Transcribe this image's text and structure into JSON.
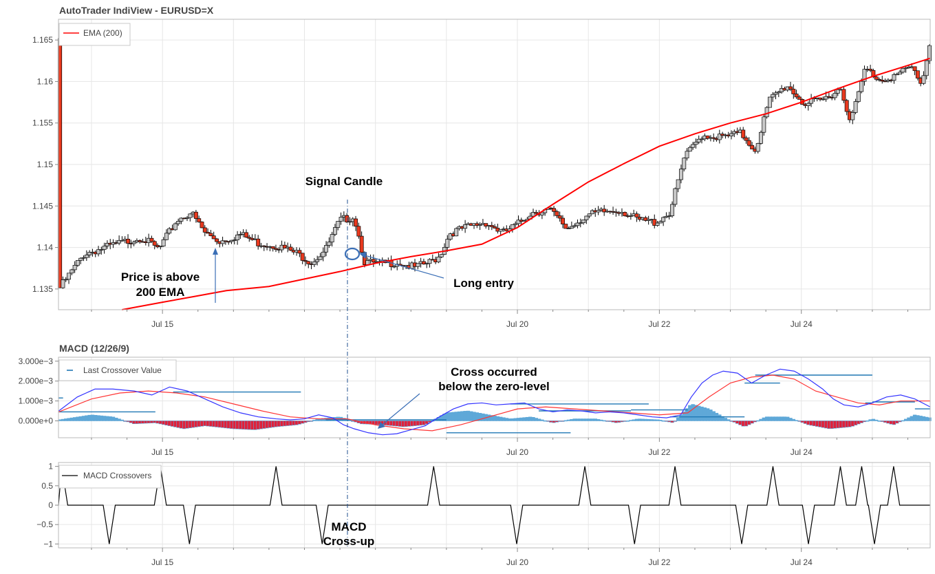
{
  "page": {
    "title": "AutoTrader IndiView - EURUSD=X"
  },
  "colors": {
    "up_candle": "#c8c8c8",
    "down_candle": "#e8391e",
    "ema": "#ff0000",
    "macd_line": "#3333ff",
    "signal_line": "#ff3333",
    "hist_pos": "#5fa8d8",
    "hist_neg": "#e0203a",
    "crossover_level": "#1f77b4",
    "crossover_line": "#000000",
    "annotation_arrow": "#3b6fb6",
    "grid": "#e6e6e6"
  },
  "x_axis": {
    "labels": [
      "Jul 15",
      "Jul 20",
      "Jul 22",
      "Jul 24"
    ],
    "label_positions_days": [
      14,
      19,
      21,
      23
    ]
  },
  "chart_data": [
    {
      "type": "candlestick",
      "title": "AutoTrader IndiView - EURUSD=X",
      "x_range_days": [
        12.535,
        24.815
      ],
      "ylim": [
        1.1325,
        1.1675
      ],
      "y_ticks": [
        1.135,
        1.14,
        1.145,
        1.15,
        1.155,
        1.16,
        1.165
      ],
      "y_tick_labels": [
        "1.135",
        "1.14",
        "1.145",
        "1.15",
        "1.155",
        "1.16",
        "1.165"
      ],
      "grid": true,
      "legend_placement": "top-left",
      "legend": [
        "EMA (200)"
      ],
      "series": [
        {
          "name": "EMA (200)",
          "kind": "line",
          "x": [
            13.43,
            14.0,
            14.45,
            14.9,
            15.5,
            16.0,
            16.5,
            17.0,
            17.5,
            18.0,
            18.5,
            19.0,
            19.5,
            20.0,
            20.5,
            21.0,
            21.5,
            22.0,
            22.5,
            23.0,
            23.5,
            24.0,
            24.45,
            24.815
          ],
          "y": [
            1.1325,
            1.1334,
            1.1341,
            1.1348,
            1.1353,
            1.1362,
            1.1371,
            1.1381,
            1.1389,
            1.1396,
            1.1404,
            1.1424,
            1.1452,
            1.1479,
            1.1501,
            1.1522,
            1.1537,
            1.155,
            1.1561,
            1.1575,
            1.1591,
            1.1606,
            1.1618,
            1.1628
          ]
        }
      ],
      "candles_anchor_close": [
        [
          12.54,
          1.1352
        ],
        [
          12.9,
          1.1395
        ],
        [
          13.3,
          1.1405
        ],
        [
          13.7,
          1.1415
        ],
        [
          13.95,
          1.14
        ],
        [
          14.2,
          1.1435
        ],
        [
          14.4,
          1.1445
        ],
        [
          14.6,
          1.142
        ],
        [
          14.8,
          1.141
        ],
        [
          15.1,
          1.1418
        ],
        [
          15.35,
          1.1408
        ],
        [
          15.6,
          1.1405
        ],
        [
          15.9,
          1.1395
        ],
        [
          16.1,
          1.1385
        ],
        [
          16.3,
          1.14
        ],
        [
          16.5,
          1.1435
        ],
        [
          16.7,
          1.144
        ],
        [
          16.85,
          1.1385
        ],
        [
          17.05,
          1.1382
        ],
        [
          17.3,
          1.1385
        ],
        [
          17.55,
          1.1378
        ],
        [
          17.78,
          1.1385
        ],
        [
          17.9,
          1.1392
        ],
        [
          18.05,
          1.142
        ],
        [
          18.3,
          1.1427
        ],
        [
          18.55,
          1.1433
        ],
        [
          18.8,
          1.142
        ],
        [
          19.0,
          1.143
        ],
        [
          19.2,
          1.1445
        ],
        [
          19.45,
          1.1448
        ],
        [
          19.7,
          1.1425
        ],
        [
          19.95,
          1.144
        ],
        [
          20.2,
          1.1445
        ],
        [
          20.45,
          1.1448
        ],
        [
          20.7,
          1.1435
        ],
        [
          20.95,
          1.1433
        ],
        [
          21.15,
          1.1445
        ],
        [
          21.35,
          1.151
        ],
        [
          21.6,
          1.1538
        ],
        [
          21.9,
          1.1535
        ],
        [
          22.15,
          1.154
        ],
        [
          22.35,
          1.152
        ],
        [
          22.55,
          1.158
        ],
        [
          22.8,
          1.1598
        ],
        [
          23.05,
          1.1575
        ],
        [
          23.3,
          1.158
        ],
        [
          23.55,
          1.1595
        ],
        [
          23.7,
          1.1555
        ],
        [
          23.9,
          1.1618
        ],
        [
          24.1,
          1.1605
        ],
        [
          24.35,
          1.161
        ],
        [
          24.55,
          1.162
        ],
        [
          24.7,
          1.16
        ],
        [
          24.815,
          1.1652
        ]
      ]
    },
    {
      "type": "line",
      "title": "MACD (12/26/9)",
      "ylim": [
        -0.00085,
        0.0032
      ],
      "y_ticks": [
        0.0,
        0.001,
        0.002,
        0.003
      ],
      "y_tick_labels": [
        "0.000e+0",
        "1.000e−3",
        "2.000e−3",
        "3.000e−3"
      ],
      "grid": true,
      "legend_placement": "top-left",
      "legend": [
        "Last Crossover Value"
      ],
      "series": [
        {
          "name": "macd",
          "kind": "line",
          "x": [
            12.54,
            12.8,
            13.05,
            13.3,
            13.6,
            13.85,
            14.1,
            14.35,
            14.6,
            14.85,
            15.1,
            15.35,
            15.6,
            15.8,
            16.0,
            16.2,
            16.4,
            16.55,
            16.7,
            16.9,
            17.1,
            17.3,
            17.5,
            17.7,
            17.9,
            18.1,
            18.3,
            18.5,
            18.7,
            18.9,
            19.1,
            19.3,
            19.5,
            19.7,
            19.9,
            20.1,
            20.3,
            20.5,
            20.7,
            20.9,
            21.1,
            21.3,
            21.45,
            21.6,
            21.75,
            21.9,
            22.1,
            22.3,
            22.5,
            22.7,
            22.9,
            23.1,
            23.3,
            23.45,
            23.6,
            23.8,
            24.0,
            24.2,
            24.4,
            24.6,
            24.815
          ],
          "y": [
            0.0005,
            0.0012,
            0.0016,
            0.0016,
            0.0015,
            0.0013,
            0.0017,
            0.0015,
            0.0011,
            0.0007,
            0.0004,
            0.0002,
            0.0001,
            5e-05,
            0.0001,
            0.0003,
            0.00015,
            -0.0002,
            -0.0004,
            -0.0006,
            -0.0007,
            -0.00065,
            -0.00045,
            -0.00025,
            0.0002,
            0.0006,
            0.00085,
            0.0009,
            0.0008,
            0.00085,
            0.0009,
            0.0006,
            0.00045,
            0.00055,
            0.0005,
            0.0004,
            0.00045,
            0.0004,
            0.0003,
            0.0002,
            0.00015,
            0.0003,
            0.0012,
            0.0019,
            0.0023,
            0.0025,
            0.0024,
            0.0019,
            0.0023,
            0.0026,
            0.0025,
            0.0021,
            0.0016,
            0.0011,
            0.0008,
            0.0007,
            0.0009,
            0.0012,
            0.0013,
            0.0011,
            0.0007
          ]
        },
        {
          "name": "signal",
          "kind": "line",
          "x": [
            12.54,
            13.0,
            13.4,
            13.8,
            14.2,
            14.6,
            15.0,
            15.4,
            15.8,
            16.2,
            16.6,
            17.0,
            17.4,
            17.8,
            18.2,
            18.6,
            19.0,
            19.4,
            19.8,
            20.2,
            20.6,
            21.0,
            21.4,
            21.7,
            22.0,
            22.3,
            22.6,
            22.9,
            23.2,
            23.5,
            23.8,
            24.1,
            24.4,
            24.815
          ],
          "y": [
            0.00045,
            0.0011,
            0.0014,
            0.0015,
            0.0014,
            0.0012,
            0.00085,
            0.0005,
            0.0002,
            0.0001,
            0.0001,
            -0.0002,
            -0.0004,
            -0.0005,
            -0.0002,
            0.0002,
            0.0006,
            0.0007,
            0.0006,
            0.0005,
            0.0004,
            0.0003,
            0.0004,
            0.0012,
            0.0019,
            0.0022,
            0.0023,
            0.0021,
            0.0015,
            0.0012,
            0.0009,
            0.0008,
            0.001,
            0.001
          ]
        },
        {
          "name": "histogram",
          "kind": "bar",
          "anchor_x": [
            12.54,
            13.0,
            13.3,
            13.6,
            13.9,
            14.3,
            14.6,
            15.0,
            15.3,
            15.6,
            15.9,
            16.2,
            16.5,
            16.8,
            17.1,
            17.4,
            17.7,
            18.0,
            18.3,
            18.6,
            18.9,
            19.2,
            19.5,
            19.8,
            20.1,
            20.4,
            20.7,
            21.0,
            21.2,
            21.45,
            21.7,
            21.95,
            22.2,
            22.5,
            22.8,
            23.1,
            23.4,
            23.7,
            24.0,
            24.3,
            24.6,
            24.815
          ],
          "anchor_y": [
            5e-05,
            0.0003,
            0.0002,
            -0.00015,
            -0.0001,
            -0.0004,
            -0.00025,
            -0.0004,
            -0.00045,
            -0.0003,
            -0.0002,
            0.0001,
            0.0002,
            -0.00015,
            -0.0002,
            -0.0003,
            -0.0002,
            0.0004,
            0.0005,
            0.0003,
            0.0001,
            0.0002,
            -0.0001,
            0.0001,
            0.0001,
            -0.0001,
            0.0001,
            5e-05,
            -0.0001,
            0.00085,
            0.0006,
            0.0001,
            -0.0003,
            0.0002,
            0.0002,
            -0.0002,
            -0.0004,
            -0.0003,
            0.0001,
            -0.0002,
            0.0003,
            0.00015
          ]
        },
        {
          "name": "Last Crossover Value",
          "kind": "step",
          "segments": [
            [
              12.54,
              12.6,
              0.00115
            ],
            [
              12.54,
              13.9,
              0.00045
            ],
            [
              14.15,
              15.95,
              0.00145
            ],
            [
              16.3,
              18.0,
              5e-05
            ],
            [
              18.0,
              19.75,
              -0.0006
            ],
            [
              18.9,
              20.85,
              0.00085
            ],
            [
              19.3,
              20.6,
              0.0005
            ],
            [
              20.6,
              21.4,
              0.00055
            ],
            [
              21.15,
              22.2,
              0.0002
            ],
            [
              22.2,
              22.7,
              0.0019
            ],
            [
              22.35,
              24.0,
              0.0023
            ],
            [
              23.9,
              24.0,
              0.0009
            ],
            [
              24.0,
              24.05,
              0.00095
            ],
            [
              24.05,
              24.6,
              0.00095
            ],
            [
              24.6,
              24.815,
              0.0006
            ]
          ]
        }
      ]
    },
    {
      "type": "line",
      "title": "",
      "ylim": [
        -1.1,
        1.1
      ],
      "y_ticks": [
        -1,
        -0.5,
        0,
        0.5,
        1
      ],
      "y_tick_labels": [
        "−1",
        "−0.5",
        "0",
        "0.5",
        "1"
      ],
      "grid": true,
      "legend_placement": "top-left",
      "legend": [
        "MACD Crossovers"
      ],
      "series": [
        {
          "name": "MACD Crossovers",
          "kind": "spikes",
          "baseline": 0,
          "spikes": [
            [
              12.58,
              1
            ],
            [
              13.25,
              -1
            ],
            [
              13.97,
              1
            ],
            [
              14.38,
              -1
            ],
            [
              15.6,
              1
            ],
            [
              16.25,
              -1
            ],
            [
              17.82,
              1
            ],
            [
              18.99,
              -1
            ],
            [
              19.95,
              1
            ],
            [
              20.65,
              -1
            ],
            [
              21.22,
              1
            ],
            [
              22.16,
              -1
            ],
            [
              22.6,
              1
            ],
            [
              23.1,
              -1
            ],
            [
              23.55,
              1
            ],
            [
              23.85,
              1
            ],
            [
              24.03,
              -1
            ],
            [
              24.3,
              1
            ]
          ]
        }
      ]
    }
  ],
  "annotations": {
    "signal_candle": "Signal Candle",
    "price_above_line1": "Price is above",
    "price_above_line2": "200 EMA",
    "long_entry": "Long entry",
    "cross_below_line1": "Cross occurred",
    "cross_below_line2": "below the zero-level",
    "macd_crossup_line1": "MACD",
    "macd_crossup_line2": "Cross-up"
  }
}
